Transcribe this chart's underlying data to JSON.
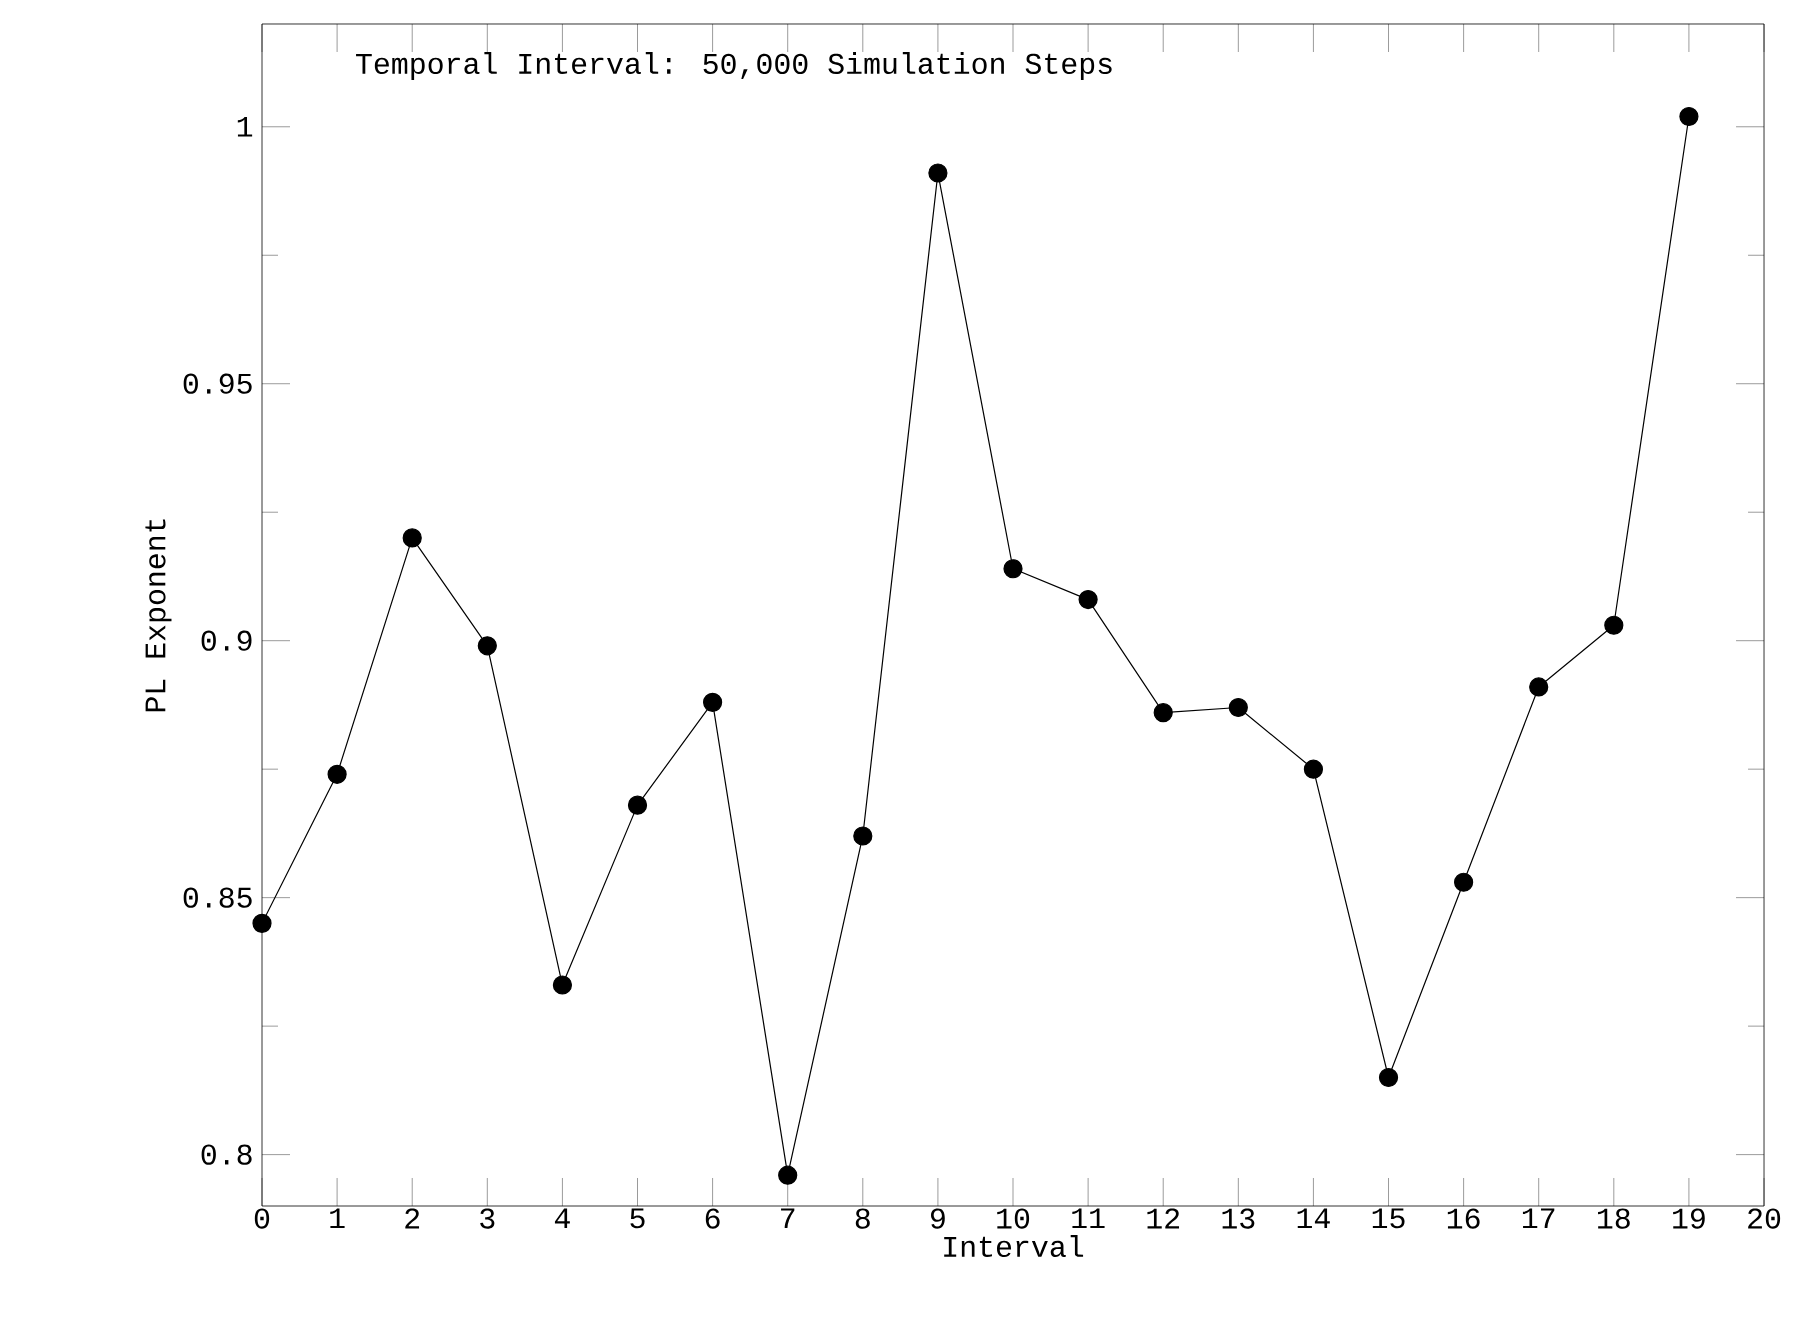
{
  "chart_data": {
    "type": "line",
    "xlabel": "Interval",
    "ylabel": "PL Exponent",
    "annotations": [
      "Temporal Interval: 50,000 Simulation Steps"
    ],
    "x": [
      0,
      1,
      2,
      3,
      4,
      5,
      6,
      7,
      8,
      9,
      10,
      11,
      12,
      13,
      14,
      15,
      16,
      17,
      18,
      19
    ],
    "series": [
      {
        "color": "#000000",
        "values": [
          0.845,
          0.874,
          0.92,
          0.899,
          0.833,
          0.868,
          0.888,
          0.796,
          0.862,
          0.991,
          0.914,
          0.908,
          0.886,
          0.887,
          0.875,
          0.815,
          0.853,
          0.891,
          0.903,
          1.002
        ]
      }
    ],
    "xlim": [
      0,
      20
    ],
    "ylim": [
      0.79,
      1.02
    ],
    "xticks": [
      0,
      1,
      2,
      3,
      4,
      5,
      6,
      7,
      8,
      9,
      10,
      11,
      12,
      13,
      14,
      15,
      16,
      17,
      18,
      19,
      20
    ],
    "yticks": [
      0.8,
      0.85,
      0.9,
      0.95,
      1
    ],
    "marker": "circle",
    "line_style": "solid",
    "grid": false
  }
}
